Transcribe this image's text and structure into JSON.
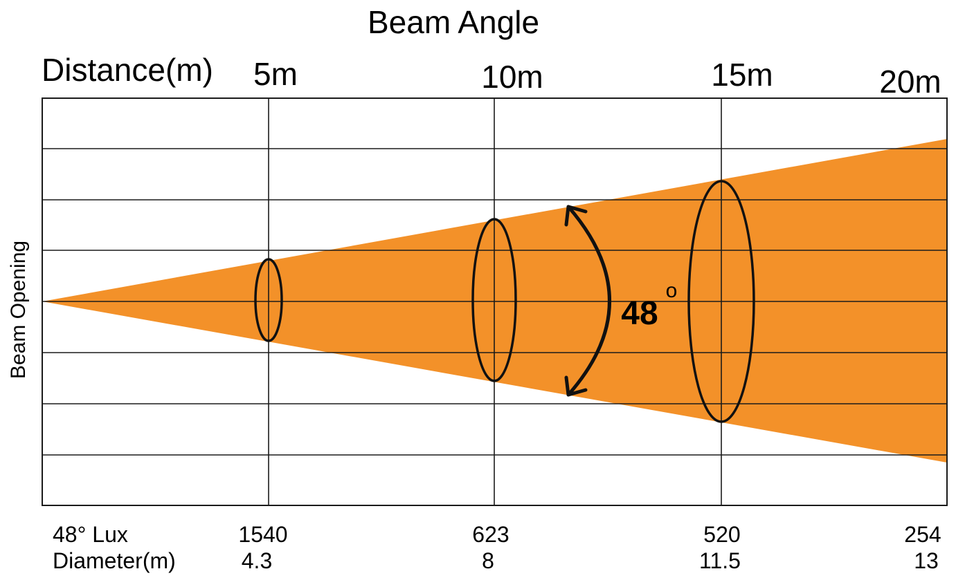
{
  "title": "Beam Angle",
  "distance_label": "Distance(m)",
  "y_axis_label": "Beam Opening",
  "beam_angle_value": "48",
  "degree_symbol": "o",
  "beam_color": "#f39129",
  "columns": [
    {
      "distance": "5m",
      "lux": "1540",
      "diameter": "4.3"
    },
    {
      "distance": "10m",
      "lux": "623",
      "diameter": "8"
    },
    {
      "distance": "15m",
      "lux": "520",
      "diameter": "11.5"
    },
    {
      "distance": "20m",
      "lux": "254",
      "diameter": "13"
    }
  ],
  "rows": {
    "lux_label": "48°  Lux",
    "diameter_label": "Diameter(m)"
  }
}
